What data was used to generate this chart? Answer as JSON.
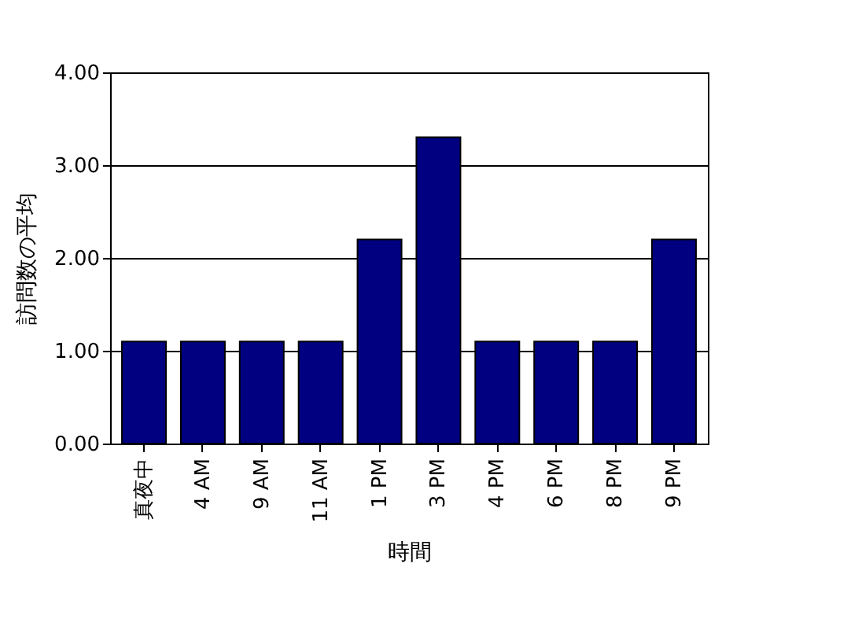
{
  "chart_data": {
    "type": "bar",
    "xlabel": "時間",
    "ylabel": "訪問数の平均",
    "categories": [
      "真夜中",
      "4 AM",
      "9 AM",
      "11 AM",
      "1 PM",
      "3 PM",
      "4 PM",
      "6 PM",
      "8 PM",
      "9 PM"
    ],
    "values": [
      1.1,
      1.1,
      1.1,
      1.1,
      2.2,
      3.3,
      1.1,
      1.1,
      1.1,
      2.2
    ],
    "color": "#000080",
    "ylim": [
      0,
      4
    ],
    "yticks": [
      {
        "value": 0,
        "label": "0.00"
      },
      {
        "value": 1,
        "label": "1.00"
      },
      {
        "value": 2,
        "label": "2.00"
      },
      {
        "value": 3,
        "label": "3.00"
      },
      {
        "value": 4,
        "label": "4.00"
      }
    ],
    "grid": "y"
  }
}
